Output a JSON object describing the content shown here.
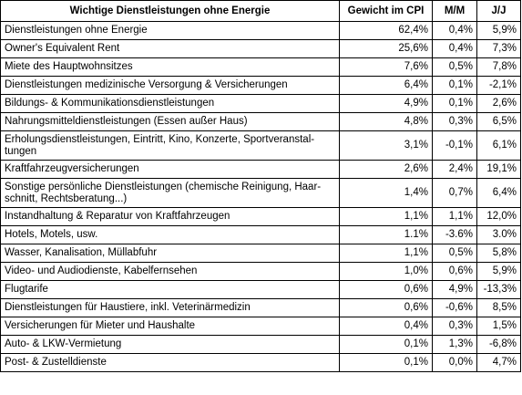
{
  "table": {
    "headers": {
      "label": "Wichtige Dienstleistungen ohne Energie",
      "weight": "Gewicht im CPI",
      "mm": "M/M",
      "yy": "J/J"
    },
    "rows": [
      {
        "label": "Dienstleistungen ohne Energie",
        "weight": "62,4%",
        "mm": "0,4%",
        "yy": "5,9%"
      },
      {
        "label": "Owner's Equivalent Rent",
        "weight": "25,6%",
        "mm": "0,4%",
        "yy": "7,3%"
      },
      {
        "label": "Miete des Hauptwohnsitzes",
        "weight": "7,6%",
        "mm": "0,5%",
        "yy": "7,8%"
      },
      {
        "label": "Dienstleistungen medizinische Versorgung & Versicherungen",
        "weight": "6,4%",
        "mm": "0,1%",
        "yy": "-2,1%"
      },
      {
        "label": "Bildungs- & Kommunikationsdienstleistungen",
        "weight": "4,9%",
        "mm": "0,1%",
        "yy": "2,6%"
      },
      {
        "label": "Nahrungsmitteldienstleistungen (Essen außer Haus)",
        "weight": "4,8%",
        "mm": "0,3%",
        "yy": "6,5%"
      },
      {
        "label": "Erholungsdienstleistungen, Eintritt, Kino, Konzerte, Sportveranstal-tungen",
        "weight": "3,1%",
        "mm": "-0,1%",
        "yy": "6,1%",
        "tall": true
      },
      {
        "label": "Kraftfahrzeugversicherungen",
        "weight": "2,6%",
        "mm": "2,4%",
        "yy": "19,1%"
      },
      {
        "label": "Sonstige persönliche Dienstleistungen (chemische Reinigung, Haar-schnitt, Rechtsberatung...)",
        "weight": "1,4%",
        "mm": "0,7%",
        "yy": "6,4%",
        "tall": true
      },
      {
        "label": "Instandhaltung & Reparatur von Kraftfahrzeugen",
        "weight": "1,1%",
        "mm": "1,1%",
        "yy": "12,0%"
      },
      {
        "label": "Hotels, Motels, usw.",
        "weight": "1.1%",
        "mm": "-3.6%",
        "yy": "3.0%"
      },
      {
        "label": "Wasser, Kanalisation, Müllabfuhr",
        "weight": "1,1%",
        "mm": "0,5%",
        "yy": "5,8%"
      },
      {
        "label": "Video- und Audiodienste, Kabelfernsehen",
        "weight": "1,0%",
        "mm": "0,6%",
        "yy": "5,9%"
      },
      {
        "label": "Flugtarife",
        "weight": "0,6%",
        "mm": "4,9%",
        "yy": "-13,3%"
      },
      {
        "label": "Dienstleistungen für Haustiere, inkl. Veterinärmedizin",
        "weight": "0,6%",
        "mm": "-0,6%",
        "yy": "8,5%"
      },
      {
        "label": "Versicherungen für Mieter und Haushalte",
        "weight": "0,4%",
        "mm": "0,3%",
        "yy": "1,5%"
      },
      {
        "label": "Auto- & LKW-Vermietung",
        "weight": "0,1%",
        "mm": "1,3%",
        "yy": "-6,8%"
      },
      {
        "label": "Post- & Zustelldienste",
        "weight": "0,1%",
        "mm": "0,0%",
        "yy": "4,7%"
      }
    ]
  }
}
